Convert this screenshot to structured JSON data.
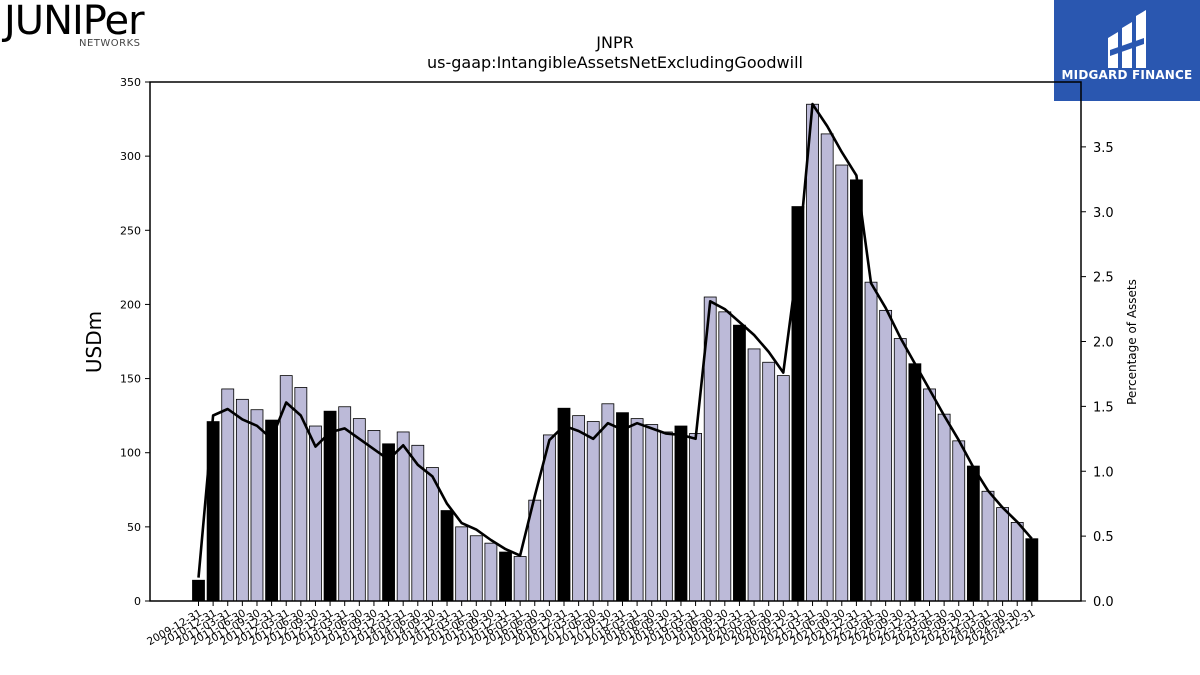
{
  "logos": {
    "left_brand": "JUNIPer",
    "left_sub": "NETWORKS",
    "right_brand": "MIDGARD FINANCE"
  },
  "chart_data": {
    "type": "bar+line",
    "title": "JNPR",
    "subtitle": "us-gaap:IntangibleAssetsNetExcludingGoodwill",
    "ylabel": "USDm",
    "y2label": "Percentage of Assets",
    "ylim": [
      0,
      350
    ],
    "y2lim": [
      0,
      4.0
    ],
    "yticks": [
      0,
      50,
      100,
      150,
      200,
      250,
      300,
      350
    ],
    "y2ticks": [
      "0.0",
      "0.5",
      "1.0",
      "1.5",
      "2.0",
      "2.5",
      "3.0",
      "3.5"
    ],
    "categories": [
      "2009-12-31",
      "2010-12-31",
      "2011-03-31",
      "2011-06-30",
      "2011-09-30",
      "2011-12-31",
      "2012-03-31",
      "2012-06-30",
      "2012-09-30",
      "2012-12-31",
      "2013-03-31",
      "2013-06-30",
      "2013-09-30",
      "2013-12-31",
      "2014-03-31",
      "2014-06-30",
      "2014-09-30",
      "2014-12-31",
      "2015-03-31",
      "2015-06-30",
      "2015-09-30",
      "2015-12-31",
      "2016-03-31",
      "2016-06-30",
      "2016-09-30",
      "2016-12-31",
      "2017-03-31",
      "2017-06-30",
      "2017-09-30",
      "2017-12-31",
      "2018-03-31",
      "2018-06-30",
      "2018-09-30",
      "2018-12-31",
      "2019-03-31",
      "2019-06-30",
      "2019-09-30",
      "2019-12-31",
      "2020-03-31",
      "2020-06-30",
      "2020-09-30",
      "2020-12-31",
      "2021-03-31",
      "2021-06-30",
      "2021-09-30",
      "2021-12-31",
      "2022-03-31",
      "2022-06-30",
      "2022-09-30",
      "2022-12-31",
      "2023-03-31",
      "2023-06-30",
      "2023-09-30",
      "2023-12-31",
      "2024-03-31",
      "2024-06-30",
      "2024-09-30",
      "2024-12-31"
    ],
    "bars": {
      "name": "IntangibleAssetsNetExcludingGoodwill",
      "values": [
        14,
        121,
        143,
        136,
        129,
        122,
        152,
        144,
        118,
        128,
        131,
        123,
        115,
        106,
        114,
        105,
        90,
        61,
        50,
        44,
        39,
        33,
        30,
        68,
        112,
        130,
        125,
        121,
        133,
        127,
        123,
        119,
        114,
        118,
        113,
        205,
        195,
        186,
        170,
        161,
        152,
        266,
        335,
        315,
        294,
        284,
        215,
        196,
        177,
        160,
        143,
        126,
        108,
        91,
        74,
        63,
        53,
        42
      ],
      "year_end_flags": [
        1,
        1,
        0,
        0,
        0,
        1,
        0,
        0,
        0,
        1,
        0,
        0,
        0,
        1,
        0,
        0,
        0,
        1,
        0,
        0,
        0,
        1,
        0,
        0,
        0,
        1,
        0,
        0,
        0,
        1,
        0,
        0,
        0,
        1,
        0,
        0,
        0,
        1,
        0,
        0,
        0,
        1,
        0,
        0,
        0,
        1,
        0,
        0,
        0,
        1,
        0,
        0,
        0,
        1,
        0,
        0,
        0,
        1
      ],
      "colors": {
        "year_end": "#000000",
        "quarter": "#bcbad8"
      }
    },
    "line": {
      "name": "Percentage of Assets",
      "values": [
        0.18,
        1.43,
        1.48,
        1.4,
        1.35,
        1.25,
        1.53,
        1.43,
        1.19,
        1.3,
        1.33,
        1.25,
        1.17,
        1.09,
        1.2,
        1.05,
        0.96,
        0.75,
        0.6,
        0.55,
        0.47,
        0.4,
        0.35,
        0.81,
        1.24,
        1.35,
        1.31,
        1.25,
        1.37,
        1.32,
        1.37,
        1.33,
        1.29,
        1.28,
        1.25,
        2.31,
        2.25,
        2.15,
        2.05,
        1.92,
        1.76,
        2.62,
        3.83,
        3.66,
        3.46,
        3.28,
        2.45,
        2.26,
        2.03,
        1.83,
        1.63,
        1.43,
        1.24,
        1.03,
        0.85,
        0.72,
        0.61,
        0.48
      ],
      "color": "#000000"
    }
  }
}
